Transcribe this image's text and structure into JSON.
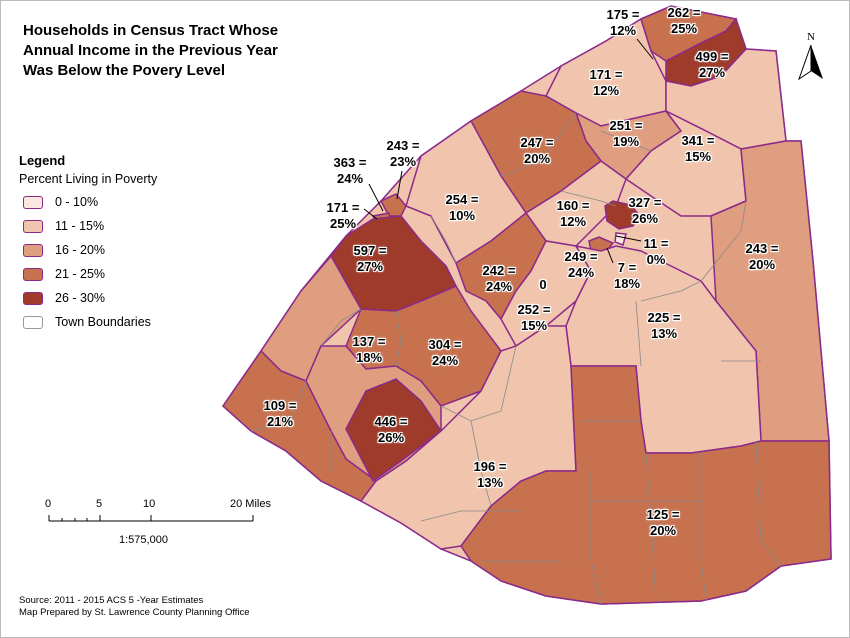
{
  "title": {
    "line1": "Households in Census Tract Whose",
    "line2": "Annual Income in the  Previous Year",
    "line3": "Was Below the Povery Level"
  },
  "legend": {
    "heading": "Legend",
    "subheading": "Percent Living in Poverty",
    "classes": [
      {
        "label": "0 - 10%",
        "color": "#fbe7df"
      },
      {
        "label": "11 - 15%",
        "color": "#f1c5ad"
      },
      {
        "label": "16 - 20%",
        "color": "#df9e7f"
      },
      {
        "label": "21 - 25%",
        "color": "#c7714f"
      },
      {
        "label": "26 - 30%",
        "color": "#9e3b2b"
      }
    ],
    "town_label": "Town Boundaries"
  },
  "north_arrow": {
    "label": "N"
  },
  "scale_bar": {
    "ticks": [
      "0",
      "5",
      "10",
      "20 Miles"
    ],
    "ratio": "1:575,000"
  },
  "source": {
    "line1": "Source: 2011 - 2015 ACS 5 -Year Estimates",
    "line2": "Map Prepared by St. Lawrence County Planning Office"
  },
  "tracts": [
    {
      "id": "t175",
      "count": "175 =",
      "pct": "12%"
    },
    {
      "id": "t262",
      "count": "262 =",
      "pct": "25%"
    },
    {
      "id": "t499",
      "count": "499 =",
      "pct": "27%"
    },
    {
      "id": "t171a",
      "count": "171 =",
      "pct": "12%"
    },
    {
      "id": "t251",
      "count": "251 =",
      "pct": "19%"
    },
    {
      "id": "t247",
      "count": "247 =",
      "pct": "20%"
    },
    {
      "id": "t341",
      "count": "341 =",
      "pct": "15%"
    },
    {
      "id": "t243a",
      "count": "243 =",
      "pct": "23%"
    },
    {
      "id": "t363",
      "count": "363 =",
      "pct": "24%"
    },
    {
      "id": "t254",
      "count": "254 =",
      "pct": "10%"
    },
    {
      "id": "t160",
      "count": "160 =",
      "pct": "12%"
    },
    {
      "id": "t327",
      "count": "327 =",
      "pct": "26%"
    },
    {
      "id": "t171b",
      "count": "171 =",
      "pct": "25%"
    },
    {
      "id": "t11",
      "count": "11 =",
      "pct": "0%"
    },
    {
      "id": "t243b",
      "count": "243 =",
      "pct": "20%"
    },
    {
      "id": "t597",
      "count": "597 =",
      "pct": "27%"
    },
    {
      "id": "t249",
      "count": "249 =",
      "pct": "24%"
    },
    {
      "id": "t7",
      "count": "7 =",
      "pct": "18%"
    },
    {
      "id": "t242",
      "count": "242 =",
      "pct": "24%"
    },
    {
      "id": "t0",
      "count": "0",
      "pct": ""
    },
    {
      "id": "t252",
      "count": "252 =",
      "pct": "15%"
    },
    {
      "id": "t225",
      "count": "225 =",
      "pct": "13%"
    },
    {
      "id": "t137",
      "count": "137 =",
      "pct": "18%"
    },
    {
      "id": "t304",
      "count": "304 =",
      "pct": "24%"
    },
    {
      "id": "t109",
      "count": "109 =",
      "pct": "21%"
    },
    {
      "id": "t446",
      "count": "446 =",
      "pct": "26%"
    },
    {
      "id": "t196",
      "count": "196 =",
      "pct": "13%"
    },
    {
      "id": "t125",
      "count": "125 =",
      "pct": "20%"
    }
  ]
}
